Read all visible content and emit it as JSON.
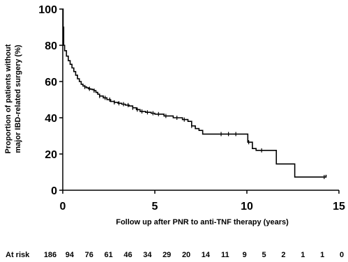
{
  "chart_data": {
    "type": "line",
    "subtype": "kaplan-meier",
    "title": "",
    "xlabel": "Follow up after PNR to anti-TNF therapy  (years)",
    "ylabel_lines": [
      "Proportion of patients without",
      "major IBD-related surgery (%)"
    ],
    "xlim": [
      0,
      15
    ],
    "ylim": [
      0,
      100
    ],
    "x_ticks": [
      0,
      5,
      10,
      15
    ],
    "y_ticks": [
      0,
      20,
      40,
      60,
      80,
      100
    ],
    "grid": false,
    "series": [
      {
        "values": [
          [
            0,
            100
          ],
          [
            0.02,
            90
          ],
          [
            0.05,
            80
          ],
          [
            0.1,
            77
          ],
          [
            0.2,
            74
          ],
          [
            0.3,
            71.5
          ],
          [
            0.4,
            69.5
          ],
          [
            0.5,
            67.5
          ],
          [
            0.6,
            65.5
          ],
          [
            0.7,
            63.5
          ],
          [
            0.8,
            61.5
          ],
          [
            0.9,
            60
          ],
          [
            1.0,
            58.5
          ],
          [
            1.1,
            57.5
          ],
          [
            1.2,
            57
          ],
          [
            1.3,
            56.5
          ],
          [
            1.4,
            56
          ],
          [
            1.5,
            55.8
          ],
          [
            1.6,
            55.5
          ],
          [
            1.7,
            55
          ],
          [
            1.8,
            54
          ],
          [
            1.9,
            53
          ],
          [
            2.0,
            52
          ],
          [
            2.2,
            51
          ],
          [
            2.4,
            50
          ],
          [
            2.6,
            49
          ],
          [
            2.8,
            48.5
          ],
          [
            3.0,
            48
          ],
          [
            3.2,
            47.5
          ],
          [
            3.4,
            47
          ],
          [
            3.6,
            46.5
          ],
          [
            3.8,
            45.5
          ],
          [
            4.0,
            44.5
          ],
          [
            4.2,
            43.5
          ],
          [
            4.5,
            43
          ],
          [
            4.8,
            42.5
          ],
          [
            5.0,
            42
          ],
          [
            5.5,
            41
          ],
          [
            6.0,
            40
          ],
          [
            6.5,
            39
          ],
          [
            6.8,
            38
          ],
          [
            7.0,
            35.5
          ],
          [
            7.2,
            34
          ],
          [
            7.4,
            33
          ],
          [
            7.6,
            31
          ],
          [
            8.0,
            31
          ],
          [
            9.0,
            31
          ],
          [
            10.0,
            31
          ],
          [
            10.05,
            26.5
          ],
          [
            10.2,
            26.5
          ],
          [
            10.3,
            23
          ],
          [
            10.5,
            22
          ],
          [
            11.6,
            22
          ],
          [
            11.6,
            14.5
          ],
          [
            12.6,
            14.5
          ],
          [
            12.6,
            7.3
          ],
          [
            14.3,
            7.3
          ],
          [
            14.3,
            8.5
          ]
        ]
      }
    ],
    "censor_x": [
      1.2,
      1.45,
      1.7,
      2.0,
      2.3,
      2.55,
      2.8,
      3.05,
      3.3,
      3.55,
      3.8,
      4.05,
      4.3,
      4.6,
      4.9,
      5.2,
      5.6,
      6.2,
      6.6,
      7.0,
      8.6,
      9.0,
      9.4,
      10.1,
      10.8,
      14.2
    ],
    "at_risk": {
      "label": "At risk",
      "values": [
        186,
        94,
        76,
        61,
        46,
        34,
        29,
        20,
        14,
        11,
        9,
        5,
        2,
        1,
        1,
        0
      ]
    }
  }
}
